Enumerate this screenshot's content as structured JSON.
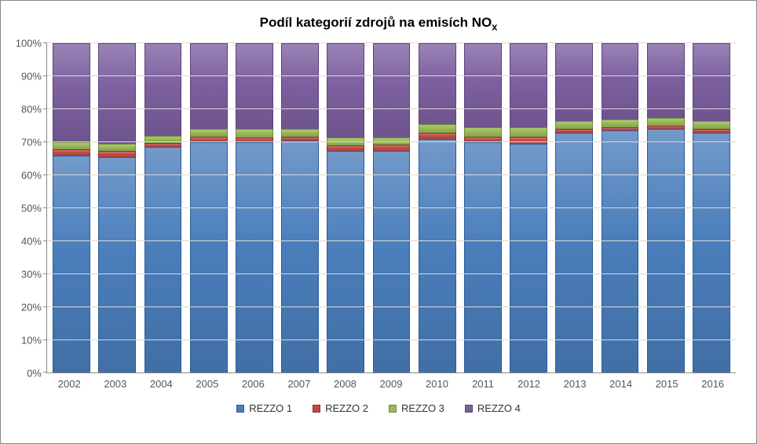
{
  "chart": {
    "type": "stacked-bar-100pct",
    "title_prefix": "Podíl kategorií zdrojů na emisích NO",
    "title_sub": "x",
    "title_fontsize": 17,
    "title_weight": "bold",
    "title_color": "#000000",
    "background_color": "#ffffff",
    "border_color": "#888888",
    "grid_color": "#d9d9d9",
    "axis_color": "#888888",
    "label_color": "#555555",
    "label_fontsize": 13,
    "ylim": [
      0,
      100
    ],
    "ytick_step": 10,
    "ytick_suffix": "%",
    "yticks": [
      "0%",
      "10%",
      "20%",
      "30%",
      "40%",
      "50%",
      "60%",
      "70%",
      "80%",
      "90%",
      "100%"
    ],
    "categories": [
      "2002",
      "2003",
      "2004",
      "2005",
      "2006",
      "2007",
      "2008",
      "2009",
      "2010",
      "2011",
      "2012",
      "2013",
      "2014",
      "2015",
      "2016"
    ],
    "series": [
      {
        "name": "REZZO 1",
        "color": "#4a7ebb",
        "stroke": "#2e5a94"
      },
      {
        "name": "REZZO 2",
        "color": "#be4b48",
        "stroke": "#8e2f2d"
      },
      {
        "name": "REZZO 3",
        "color": "#98b954",
        "stroke": "#6f8d33"
      },
      {
        "name": "REZZO 4",
        "color": "#7d60a0",
        "stroke": "#5b4278"
      }
    ],
    "values": [
      [
        66.0,
        1.8,
        2.2,
        30.0
      ],
      [
        65.5,
        1.8,
        2.2,
        30.5
      ],
      [
        68.5,
        1.3,
        2.2,
        28.0
      ],
      [
        70.0,
        1.6,
        2.4,
        26.0
      ],
      [
        70.0,
        1.4,
        2.6,
        26.0
      ],
      [
        70.5,
        1.3,
        2.2,
        26.0
      ],
      [
        67.5,
        1.5,
        2.5,
        28.5
      ],
      [
        67.5,
        1.8,
        2.2,
        28.5
      ],
      [
        71.0,
        1.8,
        2.7,
        24.5
      ],
      [
        70.0,
        1.8,
        2.7,
        25.5
      ],
      [
        69.5,
        2.3,
        2.7,
        25.5
      ],
      [
        73.0,
        1.0,
        2.5,
        23.5
      ],
      [
        73.5,
        1.0,
        2.5,
        23.0
      ],
      [
        74.0,
        1.0,
        2.5,
        22.5
      ],
      [
        73.0,
        1.0,
        2.5,
        23.5
      ]
    ],
    "bar_width_pct": 82,
    "legend_position": "bottom"
  }
}
